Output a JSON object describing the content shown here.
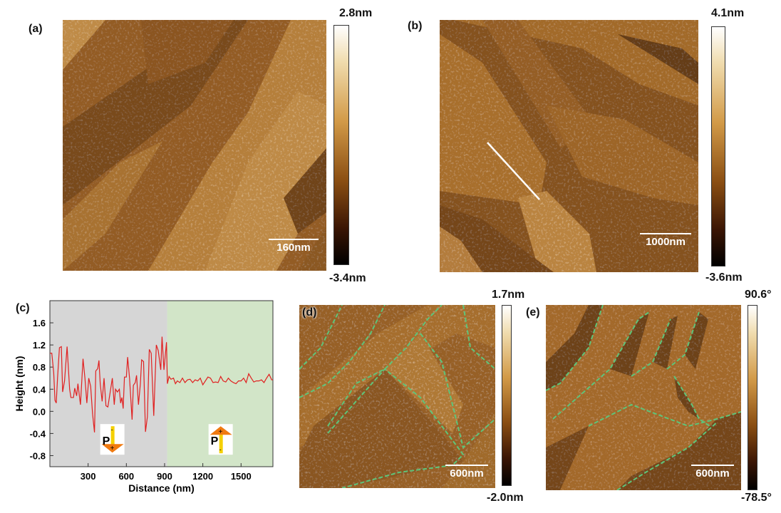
{
  "panels": {
    "a": {
      "label": "(a)",
      "cbar_max": "2.8nm",
      "cbar_min": "-3.4nm",
      "scale": "160nm"
    },
    "b": {
      "label": "(b)",
      "cbar_max": "4.1nm",
      "cbar_min": "-3.6nm",
      "scale": "1000nm"
    },
    "c": {
      "label": "(c)"
    },
    "d": {
      "label": "(d)",
      "cbar_max": "1.7nm",
      "cbar_min": "-2.0nm",
      "scale": "600nm"
    },
    "e": {
      "label": "(e)",
      "cbar_max": "90.6°",
      "cbar_min": "-78.5°",
      "scale": "600nm"
    }
  },
  "colors": {
    "afm_light": "#f3dfb0",
    "afm_mid": "#a5681f",
    "afm_dark": "#3a1a06",
    "line": "#e02020",
    "region_down": "#d6d6d6",
    "region_up": "#d2e5c8",
    "domain_wall": "#5fc47a"
  },
  "chart_data": {
    "type": "line",
    "xlabel": "Distance (nm)",
    "ylabel": "Height (nm)",
    "xlim": [
      0,
      1750
    ],
    "ylim": [
      -1.0,
      2.0
    ],
    "xticks": [
      300,
      600,
      900,
      1200,
      1500
    ],
    "yticks": [
      -0.8,
      -0.4,
      0.0,
      0.4,
      0.8,
      1.2,
      1.6
    ],
    "grid": false,
    "regions": [
      {
        "from": 0,
        "to": 920,
        "color": "#d6d6d6",
        "annotation": "P",
        "polarization": "down"
      },
      {
        "from": 920,
        "to": 1750,
        "color": "#d2e5c8",
        "annotation": "P",
        "polarization": "up"
      }
    ],
    "series": [
      {
        "color": "#e02020",
        "x": [
          0,
          15,
          30,
          40,
          50,
          60,
          75,
          90,
          100,
          115,
          135,
          155,
          165,
          185,
          195,
          210,
          220,
          240,
          260,
          275,
          290,
          305,
          320,
          335,
          350,
          360,
          375,
          385,
          395,
          410,
          425,
          440,
          455,
          470,
          490,
          505,
          515,
          530,
          545,
          555,
          565,
          575,
          585,
          600,
          610,
          625,
          645,
          655,
          670,
          680,
          695,
          710,
          720,
          735,
          750,
          765,
          780,
          795,
          815,
          835,
          850,
          870,
          880,
          895,
          915,
          922,
          935,
          950,
          970,
          985,
          1000,
          1020,
          1040,
          1060,
          1080,
          1100,
          1120,
          1140,
          1160,
          1180,
          1200,
          1220,
          1240,
          1260,
          1280,
          1300,
          1320,
          1340,
          1360,
          1380,
          1400,
          1420,
          1440,
          1460,
          1480,
          1500,
          1520,
          1540,
          1560,
          1580,
          1600,
          1620,
          1640,
          1660,
          1680,
          1700,
          1720,
          1740,
          1750
        ],
        "y": [
          1.05,
          1.05,
          0.7,
          0.2,
          0.15,
          0.6,
          1.15,
          1.17,
          0.35,
          0.55,
          1.17,
          0.4,
          0.25,
          0.25,
          0.42,
          0.28,
          0.5,
          0.12,
          0.95,
          0.6,
          0.15,
          0.6,
          0.45,
          -0.05,
          -0.38,
          0.73,
          0.77,
          0.92,
          0.5,
          0.18,
          0.6,
          0.1,
          0.08,
          0.3,
          0.6,
          0.12,
          0.4,
          0.35,
          0.4,
          0.15,
          0.25,
          0.05,
          0.62,
          0.62,
          0.98,
          0.6,
          -0.15,
          0.47,
          0.52,
          0.65,
          0.12,
          0.5,
          0.93,
          0.9,
          -0.37,
          -0.1,
          1.12,
          1.05,
          -0.08,
          1.2,
          1.1,
          0.75,
          1.35,
          0.75,
          1.25,
          0.5,
          0.63,
          0.58,
          0.6,
          0.5,
          0.55,
          0.52,
          0.6,
          0.52,
          0.57,
          0.58,
          0.52,
          0.57,
          0.55,
          0.6,
          0.48,
          0.55,
          0.62,
          0.6,
          0.52,
          0.53,
          0.52,
          0.63,
          0.55,
          0.53,
          0.6,
          0.55,
          0.52,
          0.5,
          0.55,
          0.55,
          0.6,
          0.52,
          0.68,
          0.6,
          0.53,
          0.55,
          0.55,
          0.57,
          0.52,
          0.6,
          0.67,
          0.57,
          0.57
        ]
      }
    ],
    "inset_labels": {
      "down": "P",
      "up": "P",
      "plus": "+",
      "minus": "-"
    }
  }
}
